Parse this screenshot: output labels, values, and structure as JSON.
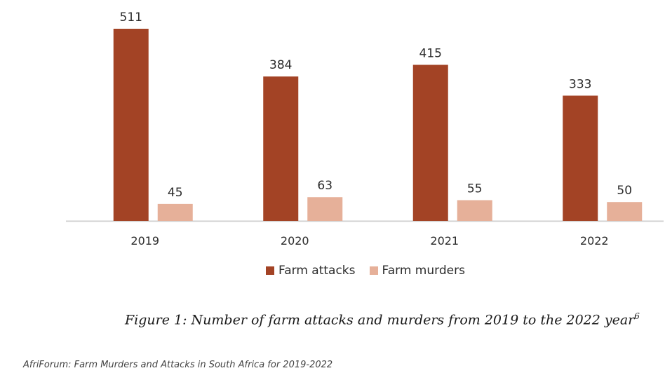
{
  "chart_data": {
    "type": "bar",
    "categories": [
      "2019",
      "2020",
      "2021",
      "2022"
    ],
    "series": [
      {
        "name": "Farm attacks",
        "values": [
          511,
          384,
          415,
          333
        ],
        "color": "#a34325"
      },
      {
        "name": "Farm murders",
        "values": [
          45,
          63,
          55,
          50
        ],
        "color": "#e6b099"
      }
    ],
    "data_labels": true,
    "legend_position": "bottom",
    "grid": false,
    "ylim": [
      0,
      511
    ]
  },
  "figure": {
    "title": "Figure 1: Number of farm attacks and murders from 2019 to the 2022 year",
    "footnote_mark": "6"
  },
  "source": "AfriForum: Farm Murders and Attacks in South Africa for 2019-2022"
}
